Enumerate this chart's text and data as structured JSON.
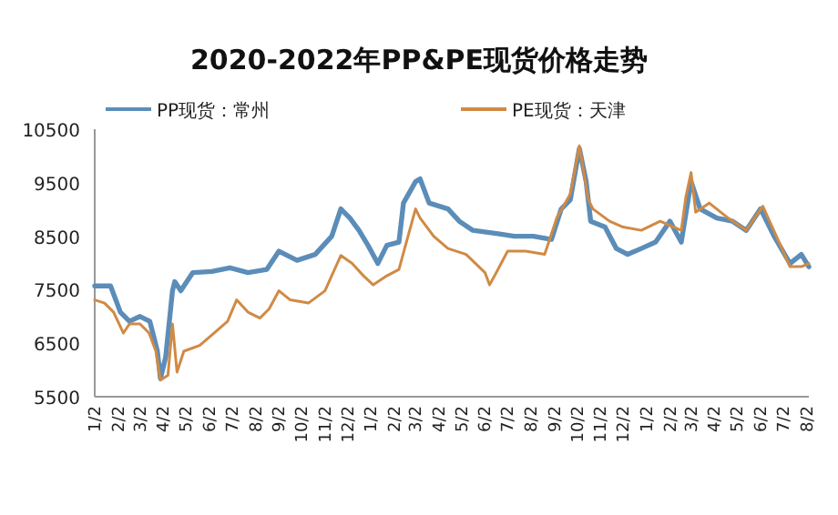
{
  "chart_data": {
    "type": "line",
    "title": "2020-2022年PP&PE现货价格走势",
    "legend": "top",
    "xlim": [
      "2020-01-02",
      "2022-08-05"
    ],
    "xticks": [
      {
        "value": "2020-01-02",
        "label": "1/2"
      },
      {
        "value": "2020-02-02",
        "label": "2/2"
      },
      {
        "value": "2020-03-02",
        "label": "3/2"
      },
      {
        "value": "2020-04-02",
        "label": "4/2"
      },
      {
        "value": "2020-05-02",
        "label": "5/2"
      },
      {
        "value": "2020-06-02",
        "label": "6/2"
      },
      {
        "value": "2020-07-02",
        "label": "7/2"
      },
      {
        "value": "2020-08-02",
        "label": "8/2"
      },
      {
        "value": "2020-09-02",
        "label": "9/2"
      },
      {
        "value": "2020-10-02",
        "label": "10/2"
      },
      {
        "value": "2020-11-02",
        "label": "11/2"
      },
      {
        "value": "2020-12-02",
        "label": "12/2"
      },
      {
        "value": "2021-01-02",
        "label": "1/2"
      },
      {
        "value": "2021-02-02",
        "label": "2/2"
      },
      {
        "value": "2021-03-02",
        "label": "3/2"
      },
      {
        "value": "2021-04-02",
        "label": "4/2"
      },
      {
        "value": "2021-05-02",
        "label": "5/2"
      },
      {
        "value": "2021-06-02",
        "label": "6/2"
      },
      {
        "value": "2021-07-02",
        "label": "7/2"
      },
      {
        "value": "2021-08-02",
        "label": "8/2"
      },
      {
        "value": "2021-09-02",
        "label": "9/2"
      },
      {
        "value": "2021-10-02",
        "label": "10/2"
      },
      {
        "value": "2021-11-02",
        "label": "11/2"
      },
      {
        "value": "2021-12-02",
        "label": "12/2"
      },
      {
        "value": "2022-01-02",
        "label": "1/2"
      },
      {
        "value": "2022-02-02",
        "label": "2/2"
      },
      {
        "value": "2022-03-02",
        "label": "3/2"
      },
      {
        "value": "2022-04-02",
        "label": "4/2"
      },
      {
        "value": "2022-05-02",
        "label": "5/2"
      },
      {
        "value": "2022-06-02",
        "label": "6/2"
      },
      {
        "value": "2022-07-02",
        "label": "7/2"
      },
      {
        "value": "2022-08-02",
        "label": "8/2"
      }
    ],
    "ylim": [
      5500,
      10500
    ],
    "yticks": [
      5500,
      6500,
      7500,
      8500,
      9500,
      10500
    ],
    "series": [
      {
        "name": "PP现货：常州",
        "color": "#5b8db8",
        "x": [
          "2020-01-02",
          "2020-01-23",
          "2020-02-05",
          "2020-02-17",
          "2020-03-02",
          "2020-03-15",
          "2020-03-25",
          "2020-03-29",
          "2020-04-05",
          "2020-04-14",
          "2020-04-17",
          "2020-04-25",
          "2020-05-11",
          "2020-06-05",
          "2020-06-29",
          "2020-07-23",
          "2020-08-17",
          "2020-09-02",
          "2020-09-26",
          "2020-10-20",
          "2020-11-11",
          "2020-11-23",
          "2020-12-05",
          "2020-12-17",
          "2020-12-29",
          "2021-01-11",
          "2021-01-23",
          "2021-02-08",
          "2021-02-14",
          "2021-03-02",
          "2021-03-08",
          "2021-03-20",
          "2021-04-14",
          "2021-04-29",
          "2021-05-17",
          "2021-06-17",
          "2021-07-11",
          "2021-08-05",
          "2021-08-29",
          "2021-09-11",
          "2021-09-23",
          "2021-10-05",
          "2021-10-14",
          "2021-10-20",
          "2021-11-08",
          "2021-11-23",
          "2021-12-08",
          "2021-12-26",
          "2022-01-14",
          "2022-02-02",
          "2022-02-17",
          "2022-03-02",
          "2022-03-14",
          "2022-04-05",
          "2022-04-26",
          "2022-05-14",
          "2022-06-02",
          "2022-06-20",
          "2022-07-11",
          "2022-07-26",
          "2022-08-05"
        ],
        "values": [
          7570,
          7570,
          7080,
          6910,
          7000,
          6910,
          6350,
          5840,
          6240,
          7480,
          7650,
          7480,
          7820,
          7840,
          7910,
          7820,
          7880,
          8220,
          8050,
          8160,
          8500,
          9010,
          8840,
          8610,
          8330,
          7990,
          8330,
          8390,
          9120,
          9520,
          9570,
          9120,
          9010,
          8780,
          8610,
          8550,
          8500,
          8500,
          8440,
          9010,
          9180,
          10140,
          9520,
          8780,
          8670,
          8270,
          8160,
          8270,
          8390,
          8780,
          8390,
          9520,
          9010,
          8840,
          8780,
          8610,
          9010,
          8500,
          7990,
          8160,
          7930
        ]
      },
      {
        "name": "PE现货：天津",
        "color": "#d08a45",
        "x": [
          "2020-01-02",
          "2020-01-15",
          "2020-01-27",
          "2020-02-09",
          "2020-02-17",
          "2020-03-02",
          "2020-03-14",
          "2020-03-23",
          "2020-03-29",
          "2020-04-08",
          "2020-04-14",
          "2020-04-20",
          "2020-04-29",
          "2020-05-20",
          "2020-06-08",
          "2020-06-26",
          "2020-07-08",
          "2020-07-23",
          "2020-08-08",
          "2020-08-20",
          "2020-09-02",
          "2020-09-17",
          "2020-10-11",
          "2020-11-02",
          "2020-11-23",
          "2020-12-08",
          "2020-12-23",
          "2021-01-05",
          "2021-01-23",
          "2021-02-08",
          "2021-02-20",
          "2021-03-02",
          "2021-03-08",
          "2021-03-26",
          "2021-04-14",
          "2021-05-08",
          "2021-06-02",
          "2021-06-08",
          "2021-06-17",
          "2021-07-02",
          "2021-07-26",
          "2021-08-20",
          "2021-09-05",
          "2021-09-23",
          "2021-10-05",
          "2021-10-17",
          "2021-10-23",
          "2021-11-14",
          "2021-12-02",
          "2021-12-26",
          "2022-01-20",
          "2022-02-17",
          "2022-02-23",
          "2022-03-02",
          "2022-03-08",
          "2022-03-26",
          "2022-04-20",
          "2022-05-14",
          "2022-06-05",
          "2022-06-23",
          "2022-07-11",
          "2022-07-26",
          "2022-08-05"
        ],
        "values": [
          7310,
          7250,
          7080,
          6690,
          6860,
          6860,
          6690,
          6350,
          5810,
          5900,
          6860,
          5960,
          6350,
          6460,
          6690,
          6910,
          7310,
          7080,
          6970,
          7140,
          7480,
          7310,
          7250,
          7480,
          8140,
          7990,
          7760,
          7590,
          7760,
          7880,
          8500,
          9010,
          8840,
          8500,
          8270,
          8160,
          7820,
          7590,
          7820,
          8220,
          8220,
          8160,
          8840,
          9290,
          10190,
          9180,
          9010,
          8780,
          8670,
          8610,
          8780,
          8610,
          9230,
          9690,
          8950,
          9120,
          8840,
          8610,
          9060,
          8500,
          7930,
          7930,
          7990
        ]
      }
    ]
  }
}
